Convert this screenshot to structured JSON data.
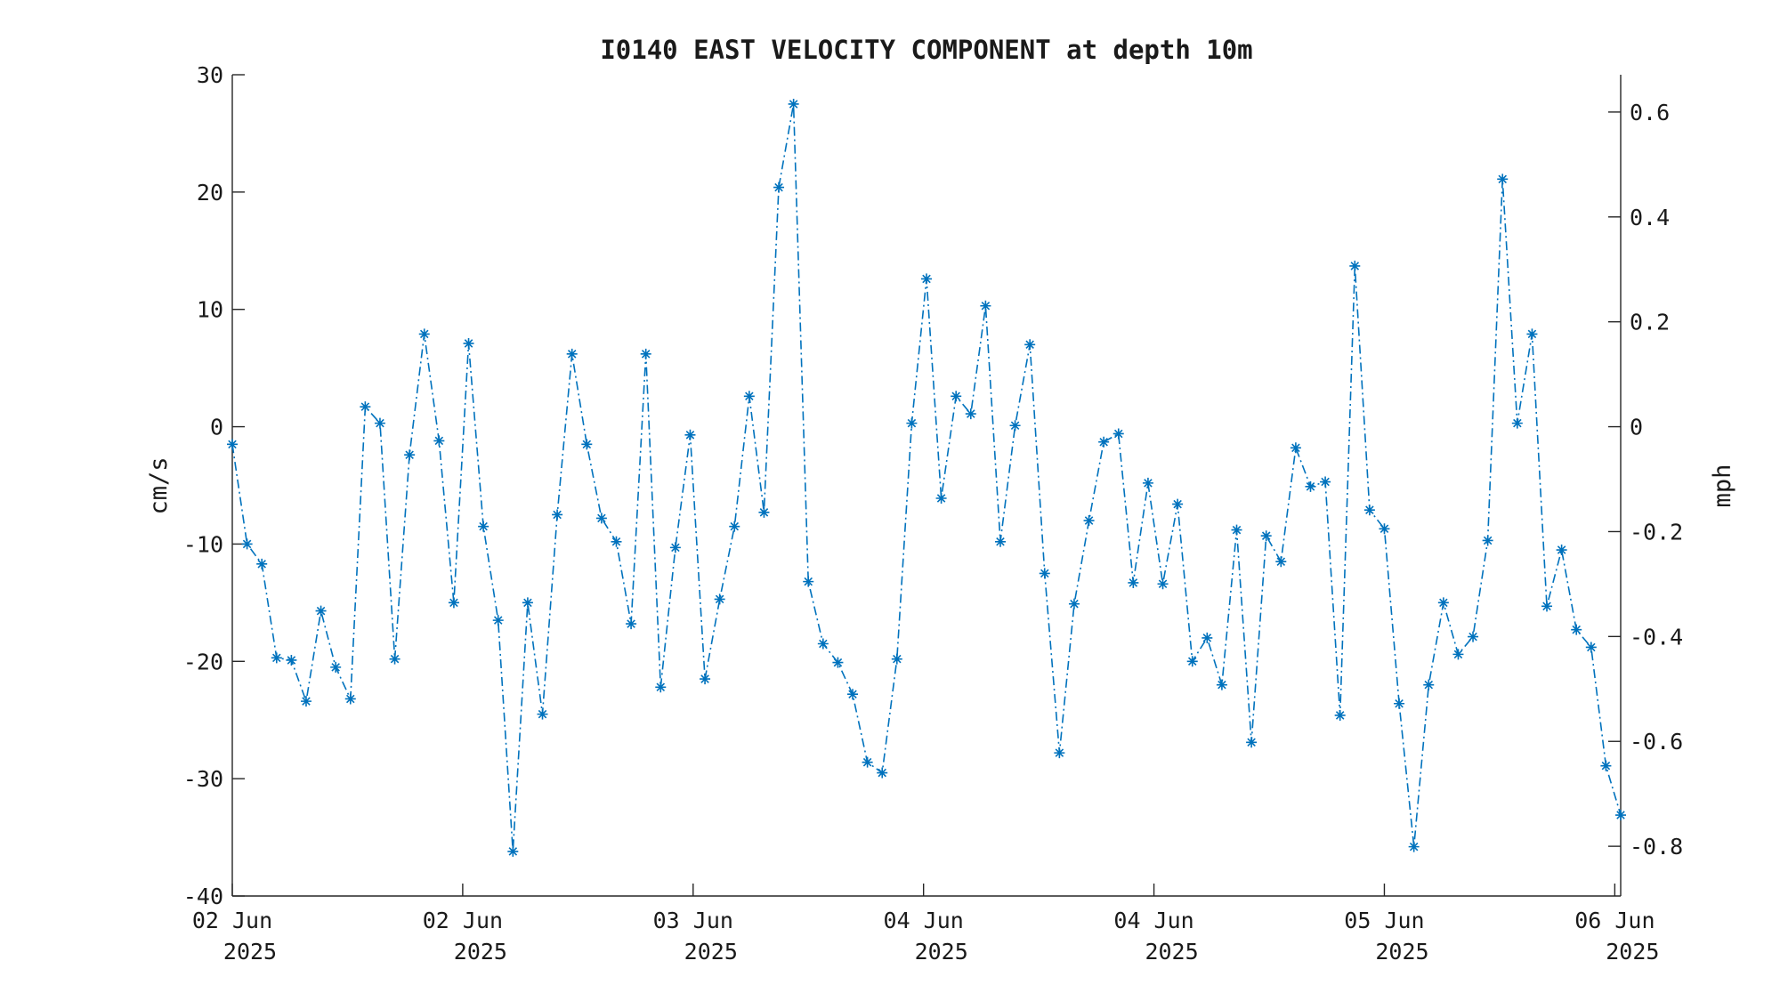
{
  "chart_data": {
    "type": "line",
    "title": "I0140 EAST VELOCITY COMPONENT at depth 10m",
    "xlabel": "",
    "ylabel": "cm/s",
    "y2label": "mph",
    "ylim": [
      -40,
      30
    ],
    "y2lim": [
      -0.8948,
      0.6711
    ],
    "grid": false,
    "legend": "none",
    "series_color": "#0072BD",
    "marker": "asterisk",
    "line_style": "dash-dot",
    "x_ticks": [
      {
        "line1": "02 Jun",
        "line2": "2025",
        "pos": 0
      },
      {
        "line1": "02 Jun",
        "line2": "2025",
        "pos": 15.6
      },
      {
        "line1": "03 Jun",
        "line2": "2025",
        "pos": 31.2
      },
      {
        "line1": "04 Jun",
        "line2": "2025",
        "pos": 46.8
      },
      {
        "line1": "04 Jun",
        "line2": "2025",
        "pos": 62.4
      },
      {
        "line1": "05 Jun",
        "line2": "2025",
        "pos": 78
      },
      {
        "line1": "06 Jun",
        "line2": "2025",
        "pos": 93.6
      }
    ],
    "y_ticks": [
      "30",
      "20",
      "10",
      "0",
      "-10",
      "-20",
      "-30",
      "-40"
    ],
    "y_tick_values": [
      30,
      20,
      10,
      0,
      -10,
      -20,
      -30,
      -40
    ],
    "y2_ticks": [
      "0.6",
      "0.4",
      "0.2",
      "0",
      "-0.2",
      "-0.4",
      "-0.6",
      "-0.8"
    ],
    "y2_tick_values": [
      0.6,
      0.4,
      0.2,
      0,
      -0.2,
      -0.4,
      -0.6,
      -0.8
    ],
    "series": [
      {
        "values": [
          -1.5,
          -10,
          -11.7,
          -19.7,
          -19.9,
          -23.4,
          -15.7,
          -20.5,
          -23.2,
          1.7,
          0.3,
          -19.8,
          -2.4,
          7.9,
          -1.2,
          -15,
          7.1,
          -8.5,
          -16.5,
          -36.2,
          -15,
          -24.5,
          -7.5,
          6.2,
          -1.5,
          -7.8,
          -9.8,
          -16.8,
          6.2,
          -22.2,
          -10.3,
          -0.7,
          -21.5,
          -14.7,
          -8.5,
          2.6,
          -7.3,
          20.4,
          27.5,
          -13.2,
          -18.5,
          -20.1,
          -22.8,
          -28.6,
          -29.5,
          -19.8,
          0.3,
          12.6,
          -6.1,
          2.6,
          1.1,
          10.3,
          -9.8,
          0.1,
          7,
          -12.5,
          -27.8,
          -15.1,
          -8,
          -1.3,
          -0.6,
          -13.3,
          -4.8,
          -13.4,
          -6.6,
          -20,
          -18,
          -22,
          -8.8,
          -26.9,
          -9.3,
          -11.5,
          -1.8,
          -5.1,
          -4.7,
          -24.6,
          13.7,
          -7.1,
          -8.7,
          -23.6,
          -35.8,
          -22,
          -15,
          -19.4,
          -17.9,
          -9.7,
          21.1,
          0.3,
          7.9,
          -15.3,
          -10.5,
          -17.3,
          -18.8,
          -28.9,
          -33.1
        ]
      }
    ]
  }
}
